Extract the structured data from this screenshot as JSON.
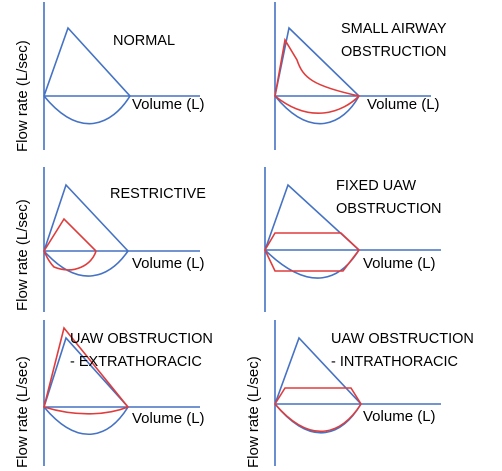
{
  "y_axis_label": "Flow rate (L/sec)",
  "x_axis_label": "Volume (L)",
  "colors": {
    "normal_loop": "#4472c4",
    "abnormal_loop": "#e03c3c",
    "axes": "#4472c4"
  },
  "panels": [
    {
      "title_lines": [
        "NORMAL"
      ]
    },
    {
      "title_lines": [
        "SMALL AIRWAY",
        "OBSTRUCTION"
      ]
    },
    {
      "title_lines": [
        "RESTRICTIVE"
      ]
    },
    {
      "title_lines": [
        "FIXED UAW",
        "OBSTRUCTION"
      ]
    },
    {
      "title_lines": [
        "UAW OBSTRUCTION",
        "- EXTRATHORACIC"
      ]
    },
    {
      "title_lines": [
        "UAW OBSTRUCTION",
        "- INTRATHORACIC"
      ]
    }
  ]
}
